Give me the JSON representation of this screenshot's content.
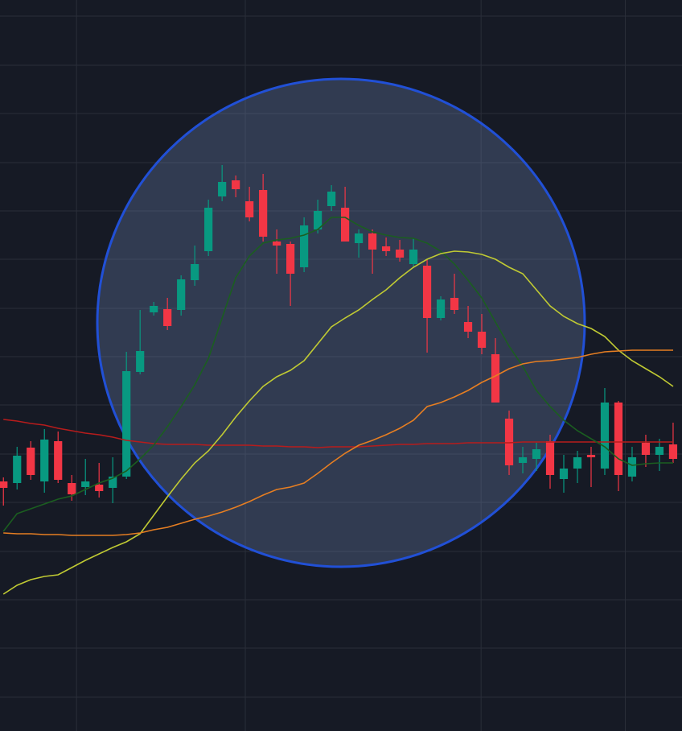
{
  "chart_data": {
    "type": "candlestick",
    "open": [
      310,
      308,
      352,
      310,
      360,
      308,
      303,
      306,
      302,
      316,
      446,
      520,
      524,
      523,
      560,
      596,
      664,
      684,
      658,
      672,
      608,
      605,
      576,
      623,
      652,
      650,
      606,
      618,
      602,
      598,
      580,
      578,
      513,
      538,
      508,
      496,
      468,
      388,
      333,
      338,
      360,
      313,
      326,
      343,
      326,
      408,
      316,
      358,
      343,
      356
    ],
    "high": [
      315,
      353,
      360,
      375,
      372,
      318,
      338,
      333,
      340,
      471,
      523,
      533,
      538,
      566,
      603,
      660,
      703,
      690,
      676,
      692,
      623,
      608,
      638,
      660,
      678,
      676,
      623,
      623,
      613,
      610,
      612,
      586,
      540,
      568,
      528,
      518,
      488,
      398,
      353,
      358,
      368,
      343,
      348,
      353,
      426,
      410,
      353,
      368,
      363,
      383
    ],
    "low": [
      280,
      300,
      312,
      296,
      308,
      286,
      293,
      290,
      283,
      313,
      443,
      516,
      498,
      516,
      553,
      590,
      658,
      663,
      633,
      608,
      568,
      528,
      570,
      618,
      646,
      608,
      588,
      568,
      590,
      583,
      576,
      470,
      510,
      518,
      488,
      468,
      408,
      318,
      320,
      323,
      301,
      296,
      308,
      303,
      318,
      298,
      310,
      328,
      323,
      333
    ],
    "close": [
      302,
      342,
      318,
      362,
      312,
      294,
      310,
      298,
      316,
      447,
      472,
      528,
      503,
      561,
      580,
      650,
      682,
      673,
      638,
      614,
      603,
      568,
      628,
      646,
      670,
      608,
      618,
      598,
      596,
      588,
      598,
      513,
      536,
      523,
      496,
      476,
      408,
      330,
      340,
      350,
      318,
      326,
      340,
      340,
      408,
      318,
      340,
      343,
      353,
      338
    ],
    "up_color": "#089981",
    "down_color": "#f23645",
    "lines": [
      {
        "color": "#b71c1c",
        "values": [
          387,
          385,
          382,
          380,
          376,
          373,
          370,
          368,
          365,
          361,
          359,
          357,
          356,
          356,
          356,
          355,
          355,
          355,
          355,
          354,
          354,
          353,
          353,
          352,
          353,
          353,
          353,
          354,
          355,
          356,
          356,
          357,
          357,
          357,
          358,
          358,
          358,
          358,
          359,
          359,
          359,
          359,
          359,
          359,
          359,
          359,
          359,
          359,
          359,
          359
        ]
      },
      {
        "color": "#1b5e20",
        "values": [
          248,
          270,
          276,
          282,
          288,
          292,
          300,
          308,
          314,
          323,
          338,
          355,
          378,
          403,
          430,
          463,
          513,
          563,
          590,
          606,
          610,
          612,
          616,
          623,
          638,
          638,
          628,
          620,
          616,
          613,
          612,
          606,
          596,
          580,
          560,
          538,
          508,
          478,
          453,
          423,
          403,
          386,
          373,
          363,
          353,
          338,
          330,
          332,
          333,
          333
        ]
      },
      {
        "color": "#c0ca33",
        "values": [
          170,
          181,
          188,
          192,
          194,
          203,
          212,
          220,
          228,
          235,
          245,
          268,
          291,
          313,
          333,
          348,
          368,
          390,
          410,
          428,
          440,
          448,
          460,
          481,
          502,
          513,
          523,
          536,
          548,
          563,
          576,
          586,
          593,
          596,
          595,
          592,
          586,
          576,
          568,
          548,
          528,
          515,
          506,
          500,
          490,
          473,
          460,
          450,
          440,
          428
        ]
      },
      {
        "color": "#e67e22",
        "values": [
          246,
          245,
          245,
          244,
          244,
          243,
          243,
          243,
          243,
          244,
          246,
          250,
          253,
          258,
          263,
          267,
          272,
          278,
          285,
          293,
          300,
          303,
          308,
          320,
          333,
          345,
          355,
          361,
          368,
          376,
          386,
          403,
          408,
          415,
          423,
          433,
          441,
          450,
          456,
          459,
          460,
          462,
          464,
          468,
          471,
          472,
          473,
          473,
          473,
          473
        ]
      }
    ],
    "xlim": [
      -0.25,
      49.65
    ],
    "xticks": [
      5.35,
      17.7,
      34.95,
      45.5
    ],
    "ylim": [
      0,
      908
    ],
    "yticks": [
      42,
      103,
      163,
      223,
      284,
      344,
      405,
      465,
      525,
      586,
      646,
      706,
      767,
      827,
      888
    ],
    "grid": true
  }
}
